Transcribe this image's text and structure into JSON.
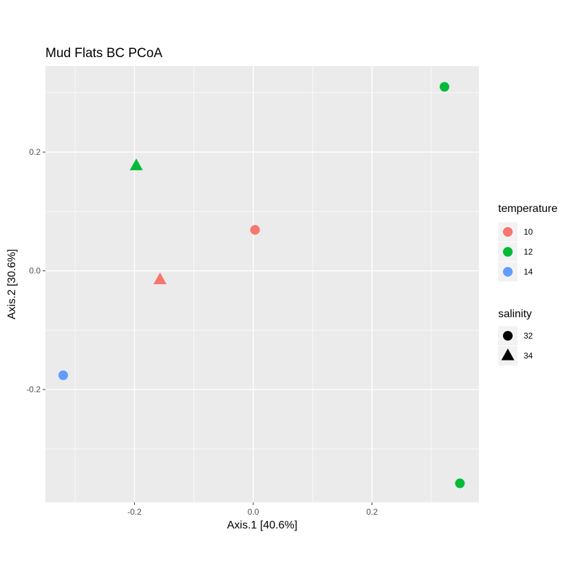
{
  "chart_data": {
    "type": "scatter",
    "title": "Mud Flats BC PCoA",
    "xlabel": "Axis.1   [40.6%]",
    "ylabel": "Axis.2   [30.6%]",
    "xlim": [
      -0.35,
      0.38
    ],
    "ylim": [
      -0.39,
      0.345
    ],
    "x_ticks": [
      -0.2,
      0.0,
      0.2
    ],
    "x_tick_labels": [
      "-0.2",
      "0.0",
      "0.2"
    ],
    "y_ticks": [
      -0.2,
      0.0,
      0.2
    ],
    "y_tick_labels": [
      "-0.2",
      "0.0",
      "0.2"
    ],
    "grid": true,
    "points": [
      {
        "x": 0.322,
        "y": 0.31,
        "temperature": "12",
        "salinity": "32"
      },
      {
        "x": -0.197,
        "y": 0.177,
        "temperature": "12",
        "salinity": "34"
      },
      {
        "x": 0.003,
        "y": 0.069,
        "temperature": "10",
        "salinity": "32"
      },
      {
        "x": -0.157,
        "y": -0.015,
        "temperature": "10",
        "salinity": "34"
      },
      {
        "x": -0.32,
        "y": -0.176,
        "temperature": "14",
        "salinity": "32"
      },
      {
        "x": 0.348,
        "y": -0.358,
        "temperature": "12",
        "salinity": "32"
      }
    ],
    "legend": {
      "position": "right",
      "color": {
        "title": "temperature",
        "items": [
          {
            "label": "10",
            "color": "#F8766D"
          },
          {
            "label": "12",
            "color": "#00BA38"
          },
          {
            "label": "14",
            "color": "#619CFF"
          }
        ]
      },
      "shape": {
        "title": "salinity",
        "items": [
          {
            "label": "32",
            "shape": "circle"
          },
          {
            "label": "34",
            "shape": "triangle"
          }
        ]
      }
    },
    "colors": {
      "panel_background": "#EBEBEB",
      "grid_major": "#FFFFFF",
      "legend_key_background": "#F2F2F2",
      "legend_shape": "#000000"
    }
  }
}
